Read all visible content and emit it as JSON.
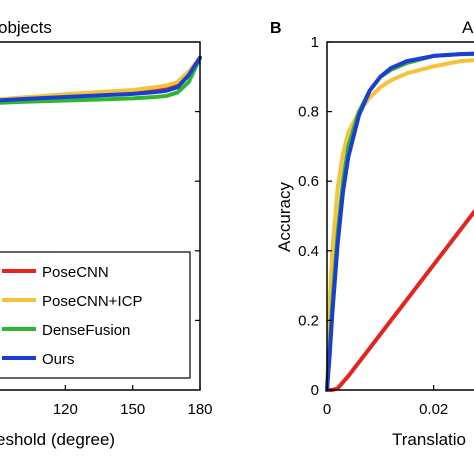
{
  "chart_data": [
    {
      "type": "line",
      "panel": "A",
      "panel_label_visible": false,
      "title": "objects",
      "xlabel": "eshold (degree)",
      "ylabel": "",
      "xlim": [
        90,
        180
      ],
      "ylim": [
        0,
        1
      ],
      "grid": false,
      "legend_position": "bottom-right",
      "x_ticks": [
        120,
        150,
        180
      ],
      "series": [
        {
          "name": "PoseCNN",
          "color": "#e8231e",
          "x": [
            90,
            100,
            120,
            140,
            150,
            160,
            165,
            170,
            175,
            180
          ],
          "y": [
            0.83,
            0.835,
            0.842,
            0.85,
            0.855,
            0.86,
            0.865,
            0.875,
            0.91,
            0.955
          ]
        },
        {
          "name": "PoseCNN+ICP",
          "color": "#f5c33b",
          "x": [
            90,
            100,
            120,
            140,
            150,
            160,
            165,
            170,
            175,
            180
          ],
          "y": [
            0.835,
            0.84,
            0.85,
            0.858,
            0.862,
            0.87,
            0.875,
            0.885,
            0.915,
            0.955
          ]
        },
        {
          "name": "DenseFusion",
          "color": "#2fb531",
          "x": [
            90,
            100,
            120,
            140,
            150,
            160,
            165,
            170,
            175,
            180
          ],
          "y": [
            0.825,
            0.828,
            0.832,
            0.836,
            0.838,
            0.842,
            0.845,
            0.855,
            0.885,
            0.955
          ]
        },
        {
          "name": "Ours",
          "color": "#1c3fd1",
          "x": [
            90,
            100,
            120,
            140,
            150,
            160,
            165,
            170,
            175,
            180
          ],
          "y": [
            0.832,
            0.836,
            0.842,
            0.848,
            0.851,
            0.856,
            0.86,
            0.87,
            0.905,
            0.955
          ]
        }
      ]
    },
    {
      "type": "line",
      "panel": "B",
      "title": "A",
      "xlabel": "Translatio",
      "ylabel": "Accuracy",
      "xlim": [
        0,
        0.03
      ],
      "ylim": [
        0,
        1
      ],
      "grid": false,
      "x_ticks": [
        0,
        0.02
      ],
      "x_tick_labels": [
        "0",
        "0.02"
      ],
      "y_ticks": [
        0,
        0.2,
        0.4,
        0.6,
        0.8,
        1
      ],
      "y_tick_labels": [
        "0",
        "0.2",
        "0.4",
        "0.6",
        "0.8",
        "1"
      ],
      "series": [
        {
          "name": "PoseCNN",
          "color": "#e8231e",
          "x": [
            0,
            0.001,
            0.002,
            0.004,
            0.006,
            0.008,
            0.01,
            0.012,
            0.014,
            0.016,
            0.018,
            0.02,
            0.022,
            0.024,
            0.026,
            0.028,
            0.03
          ],
          "y": [
            0,
            0,
            0.005,
            0.04,
            0.08,
            0.12,
            0.16,
            0.2,
            0.24,
            0.28,
            0.32,
            0.36,
            0.4,
            0.44,
            0.48,
            0.52,
            0.55
          ]
        },
        {
          "name": "PoseCNN+ICP",
          "color": "#f5c33b",
          "x": [
            0,
            0.0005,
            0.001,
            0.002,
            0.003,
            0.004,
            0.006,
            0.008,
            0.01,
            0.012,
            0.015,
            0.02,
            0.025,
            0.03
          ],
          "y": [
            0,
            0.25,
            0.4,
            0.58,
            0.68,
            0.74,
            0.8,
            0.84,
            0.87,
            0.89,
            0.91,
            0.93,
            0.945,
            0.95
          ]
        },
        {
          "name": "DenseFusion",
          "color": "#2fb531",
          "x": [
            0,
            0.0005,
            0.001,
            0.002,
            0.003,
            0.004,
            0.006,
            0.008,
            0.01,
            0.012,
            0.015,
            0.02,
            0.025,
            0.03
          ],
          "y": [
            0,
            0.12,
            0.25,
            0.45,
            0.6,
            0.7,
            0.8,
            0.86,
            0.9,
            0.92,
            0.94,
            0.96,
            0.965,
            0.965
          ]
        },
        {
          "name": "Ours",
          "color": "#1c3fd1",
          "x": [
            0,
            0.0005,
            0.001,
            0.002,
            0.003,
            0.004,
            0.006,
            0.008,
            0.01,
            0.012,
            0.015,
            0.02,
            0.025,
            0.03
          ],
          "y": [
            0,
            0.1,
            0.22,
            0.42,
            0.57,
            0.67,
            0.79,
            0.86,
            0.9,
            0.925,
            0.945,
            0.96,
            0.965,
            0.968
          ]
        }
      ]
    }
  ]
}
